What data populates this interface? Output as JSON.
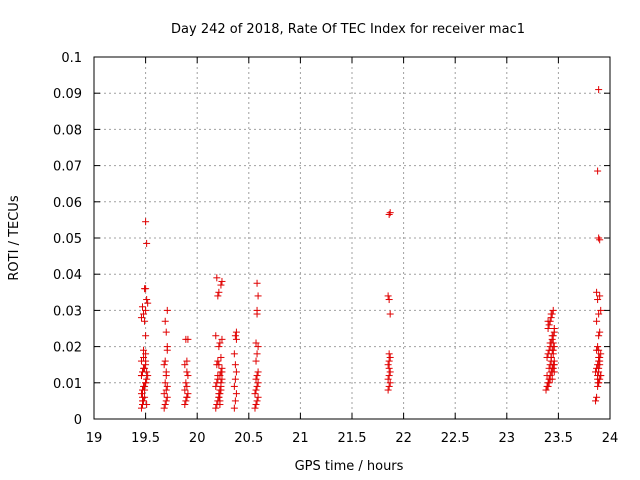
{
  "chart_data": {
    "type": "scatter",
    "title": "Day 242 of 2018, Rate Of TEC Index for receiver mac1",
    "xlabel": "GPS time / hours",
    "ylabel": "ROTI / TECUs",
    "xlim": [
      19,
      24
    ],
    "ylim": [
      0,
      0.1
    ],
    "xticks": [
      "19",
      "19.5",
      "20",
      "20.5",
      "21",
      "21.5",
      "22",
      "22.5",
      "23",
      "23.5",
      "24"
    ],
    "yticks": [
      "0",
      "0.01",
      "0.02",
      "0.03",
      "0.04",
      "0.05",
      "0.06",
      "0.07",
      "0.08",
      "0.09",
      "0.1"
    ],
    "grid": true,
    "marker": "+",
    "marker_color": "#e00000",
    "series": [
      {
        "name": "mac1",
        "x": [
          19.46,
          19.47,
          19.48,
          19.49,
          19.46,
          19.47,
          19.48,
          19.5,
          19.51,
          19.46,
          19.47,
          19.49,
          19.5,
          19.46,
          19.48,
          19.5,
          19.51,
          19.47,
          19.49,
          19.5,
          19.46,
          19.48,
          19.5,
          19.47,
          19.49,
          19.51,
          19.46,
          19.48,
          19.5,
          19.47,
          19.49,
          19.5,
          19.52,
          19.48,
          19.5,
          19.51,
          19.49,
          19.5,
          19.51,
          19.52,
          19.68,
          19.69,
          19.7,
          19.71,
          19.68,
          19.7,
          19.71,
          19.69,
          19.7,
          19.68,
          19.71,
          19.7,
          19.69,
          19.71,
          19.7,
          19.69,
          19.71,
          19.88,
          19.89,
          19.9,
          19.91,
          19.88,
          19.9,
          19.89,
          19.91,
          19.9,
          19.88,
          19.9,
          19.91,
          19.89,
          19.9,
          20.18,
          20.19,
          20.2,
          20.21,
          20.22,
          20.23,
          20.18,
          20.19,
          20.2,
          20.22,
          20.23,
          20.24,
          20.19,
          20.2,
          20.21,
          20.22,
          20.24,
          20.18,
          20.2,
          20.21,
          20.23,
          20.24,
          20.19,
          20.21,
          20.22,
          20.23,
          20.2,
          20.22,
          20.21,
          20.23,
          20.24,
          20.21,
          20.22,
          20.23,
          20.24,
          20.36,
          20.37,
          20.38,
          20.36,
          20.37,
          20.38,
          20.37,
          20.36,
          20.38,
          20.37,
          20.38,
          20.56,
          20.57,
          20.58,
          20.59,
          20.56,
          20.57,
          20.58,
          20.59,
          20.57,
          20.58,
          20.59,
          20.57,
          20.58,
          20.59,
          20.57,
          20.58,
          20.58,
          20.59,
          20.58,
          21.85,
          21.86,
          21.87,
          21.85,
          21.86,
          21.87,
          21.86,
          21.85,
          21.86,
          21.87,
          21.86,
          21.87,
          21.86,
          21.85,
          21.86,
          21.87,
          23.38,
          23.39,
          23.4,
          23.41,
          23.42,
          23.43,
          23.44,
          23.45,
          23.46,
          23.39,
          23.4,
          23.41,
          23.42,
          23.43,
          23.44,
          23.45,
          23.46,
          23.4,
          23.41,
          23.42,
          23.43,
          23.44,
          23.45,
          23.39,
          23.41,
          23.43,
          23.45,
          23.46,
          23.4,
          23.42,
          23.44,
          23.46,
          23.41,
          23.43,
          23.45,
          23.42,
          23.44,
          23.46,
          23.4,
          23.43,
          23.45,
          23.44,
          23.46,
          23.42,
          23.43,
          23.44,
          23.45,
          23.86,
          23.87,
          23.88,
          23.89,
          23.9,
          23.91,
          23.86,
          23.87,
          23.88,
          23.89,
          23.9,
          23.91,
          23.87,
          23.88,
          23.89,
          23.9,
          23.91,
          23.88,
          23.89,
          23.9,
          23.87,
          23.89,
          23.91,
          23.88,
          23.9,
          23.87,
          23.89,
          23.88,
          23.9,
          23.89,
          23.9,
          23.88,
          23.89,
          23.89,
          23.89,
          23.89
        ],
        "y": [
          0.003,
          0.004,
          0.005,
          0.006,
          0.007,
          0.008,
          0.009,
          0.01,
          0.011,
          0.012,
          0.013,
          0.014,
          0.015,
          0.016,
          0.017,
          0.018,
          0.004,
          0.006,
          0.008,
          0.01,
          0.012,
          0.014,
          0.016,
          0.005,
          0.009,
          0.013,
          0.028,
          0.029,
          0.03,
          0.031,
          0.027,
          0.023,
          0.032,
          0.019,
          0.036,
          0.033,
          0.036,
          0.0545,
          0.0485,
          0.012,
          0.003,
          0.004,
          0.005,
          0.006,
          0.007,
          0.008,
          0.009,
          0.01,
          0.013,
          0.015,
          0.019,
          0.024,
          0.027,
          0.03,
          0.012,
          0.016,
          0.02,
          0.004,
          0.005,
          0.006,
          0.007,
          0.008,
          0.009,
          0.01,
          0.012,
          0.013,
          0.015,
          0.016,
          0.022,
          0.022,
          0.006,
          0.003,
          0.004,
          0.005,
          0.006,
          0.007,
          0.008,
          0.009,
          0.01,
          0.011,
          0.012,
          0.013,
          0.014,
          0.015,
          0.016,
          0.02,
          0.021,
          0.022,
          0.023,
          0.034,
          0.035,
          0.037,
          0.038,
          0.039,
          0.006,
          0.008,
          0.01,
          0.012,
          0.004,
          0.007,
          0.009,
          0.011,
          0.015,
          0.005,
          0.017,
          0.013,
          0.003,
          0.005,
          0.007,
          0.009,
          0.011,
          0.013,
          0.015,
          0.018,
          0.022,
          0.023,
          0.024,
          0.003,
          0.004,
          0.005,
          0.006,
          0.007,
          0.008,
          0.009,
          0.01,
          0.011,
          0.012,
          0.013,
          0.016,
          0.018,
          0.02,
          0.021,
          0.029,
          0.03,
          0.034,
          0.0375,
          0.008,
          0.009,
          0.01,
          0.011,
          0.012,
          0.013,
          0.014,
          0.015,
          0.016,
          0.017,
          0.018,
          0.029,
          0.033,
          0.034,
          0.0565,
          0.057,
          0.008,
          0.009,
          0.01,
          0.011,
          0.012,
          0.013,
          0.014,
          0.015,
          0.016,
          0.017,
          0.018,
          0.019,
          0.02,
          0.021,
          0.022,
          0.023,
          0.024,
          0.025,
          0.026,
          0.027,
          0.028,
          0.029,
          0.03,
          0.012,
          0.014,
          0.016,
          0.018,
          0.02,
          0.009,
          0.011,
          0.013,
          0.015,
          0.01,
          0.017,
          0.019,
          0.021,
          0.023,
          0.025,
          0.027,
          0.029,
          0.014,
          0.011,
          0.013,
          0.015,
          0.017,
          0.019,
          0.021,
          0.005,
          0.006,
          0.009,
          0.01,
          0.011,
          0.012,
          0.013,
          0.014,
          0.015,
          0.016,
          0.017,
          0.018,
          0.019,
          0.011,
          0.013,
          0.015,
          0.012,
          0.02,
          0.023,
          0.024,
          0.027,
          0.029,
          0.03,
          0.033,
          0.034,
          0.035,
          0.01,
          0.012,
          0.016,
          0.05,
          0.0495,
          0.0685,
          0.091,
          0.014,
          0.017,
          0.019
        ]
      }
    ]
  }
}
